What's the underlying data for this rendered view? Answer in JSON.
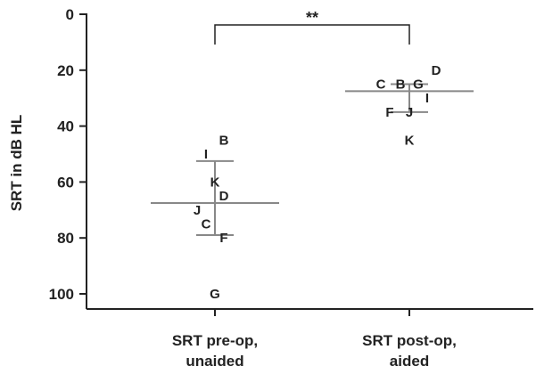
{
  "chart_data": {
    "type": "scatter",
    "ylabel": "SRT in dB HL",
    "ylim": [
      0,
      105
    ],
    "y_inverted": true,
    "yticks": [
      0,
      20,
      40,
      60,
      80,
      100
    ],
    "grid": false,
    "colors": {
      "axis": "#222222",
      "summary_lines": "#888888",
      "text": "#222222"
    },
    "categories": [
      {
        "line1": "SRT pre-op,",
        "line2": "unaided"
      },
      {
        "line1": "SRT post-op,",
        "line2": "aided"
      }
    ],
    "series": [
      {
        "points": [
          {
            "label": "B",
            "y": 45
          },
          {
            "label": "I",
            "y": 50
          },
          {
            "label": "K",
            "y": 60
          },
          {
            "label": "D",
            "y": 65
          },
          {
            "label": "J",
            "y": 70
          },
          {
            "label": "C",
            "y": 75
          },
          {
            "label": "F",
            "y": 80
          },
          {
            "label": "G",
            "y": 100
          }
        ],
        "mean": 67.5,
        "sd_low": 52.5,
        "sd_high": 79
      },
      {
        "points": [
          {
            "label": "D",
            "y": 20
          },
          {
            "label": "C",
            "y": 25
          },
          {
            "label": "B",
            "y": 25
          },
          {
            "label": "G",
            "y": 25
          },
          {
            "label": "I",
            "y": 30
          },
          {
            "label": "F",
            "y": 35
          },
          {
            "label": "J",
            "y": 35
          },
          {
            "label": "K",
            "y": 45
          }
        ],
        "mean": 27.5,
        "sd_low": 25,
        "sd_high": 35
      }
    ],
    "annotations": [
      {
        "text": "**",
        "between": [
          0,
          1
        ]
      }
    ]
  }
}
